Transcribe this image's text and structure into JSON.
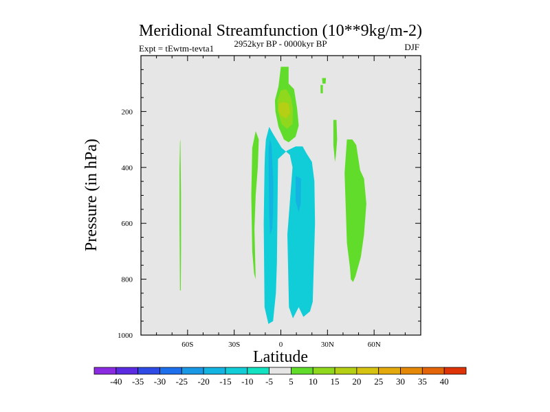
{
  "chart_data": {
    "type": "heatmap",
    "title": "Meridional Streamfunction (10**9kg/m-2)",
    "subtitle_left": "Expt = tEwtm-tevta1",
    "subtitle_center": "2952kyr BP - 0000kyr BP",
    "subtitle_right": "DJF",
    "xlabel": "Latitude",
    "ylabel": "Pressure (in hPa)",
    "xlim": [
      -90,
      90
    ],
    "ylim": [
      1000,
      0
    ],
    "x_ticks": [
      {
        "value": -60,
        "label": "60S"
      },
      {
        "value": -30,
        "label": "30S"
      },
      {
        "value": 0,
        "label": "0"
      },
      {
        "value": 30,
        "label": "30N"
      },
      {
        "value": 60,
        "label": "60N"
      }
    ],
    "y_ticks": [
      {
        "value": 200,
        "label": "200"
      },
      {
        "value": 400,
        "label": "400"
      },
      {
        "value": 600,
        "label": "600"
      },
      {
        "value": 800,
        "label": "800"
      },
      {
        "value": 1000,
        "label": "1000"
      }
    ],
    "background_level": "-5 to 5 (neutral)",
    "regions": [
      {
        "name": "lat-65-positive",
        "level": 5,
        "points": [
          [
            -64.6,
            300
          ],
          [
            -64.2,
            500
          ],
          [
            -64.2,
            700
          ],
          [
            -64.4,
            840
          ],
          [
            -64.9,
            840
          ],
          [
            -65.2,
            600
          ],
          [
            -65.2,
            400
          ],
          [
            -64.9,
            310
          ]
        ]
      },
      {
        "name": "lat-15S-positive",
        "level": 5,
        "points": [
          [
            -16.2,
            270
          ],
          [
            -14.2,
            300
          ],
          [
            -14.8,
            400
          ],
          [
            -16.2,
            500
          ],
          [
            -17.0,
            620
          ],
          [
            -16.2,
            800
          ],
          [
            -17.2,
            780
          ],
          [
            -18.4,
            700
          ],
          [
            -19.0,
            500
          ],
          [
            -18.4,
            330
          ]
        ]
      },
      {
        "name": "upper-equatorial-positive",
        "level": 5,
        "points": [
          [
            0,
            40
          ],
          [
            5,
            40
          ],
          [
            5,
            100
          ],
          [
            8.5,
            120
          ],
          [
            10.5,
            190
          ],
          [
            11.5,
            250
          ],
          [
            9.5,
            290
          ],
          [
            5,
            310
          ],
          [
            2,
            300
          ],
          [
            -1.5,
            255
          ],
          [
            -3.5,
            200
          ],
          [
            -3.8,
            160
          ],
          [
            -1.5,
            110
          ]
        ]
      },
      {
        "name": "upper-equatorial-max-outer",
        "level": 10,
        "points": [
          [
            0,
            125
          ],
          [
            3.5,
            120
          ],
          [
            6.5,
            150
          ],
          [
            7.8,
            190
          ],
          [
            7.5,
            245
          ],
          [
            4,
            262
          ],
          [
            0.5,
            245
          ],
          [
            -1.8,
            200
          ],
          [
            -2.2,
            160
          ]
        ]
      },
      {
        "name": "upper-equatorial-max-inner",
        "level": 15,
        "points": [
          [
            -1.2,
            172
          ],
          [
            2,
            165
          ],
          [
            5,
            172
          ],
          [
            6,
            205
          ],
          [
            3.5,
            225
          ],
          [
            0,
            215
          ],
          [
            -1.5,
            195
          ]
        ]
      },
      {
        "name": "upper-60N-tip",
        "level": 5,
        "points": [
          [
            26.5,
            80
          ],
          [
            29,
            80
          ],
          [
            28.8,
            100
          ],
          [
            26.8,
            100
          ]
        ]
      },
      {
        "name": "upper-20N-speck",
        "level": 5,
        "points": [
          [
            25.5,
            105
          ],
          [
            27,
            105
          ],
          [
            27,
            135
          ],
          [
            25.6,
            135
          ]
        ]
      },
      {
        "name": "lat-35N-positive",
        "level": 5,
        "points": [
          [
            33.8,
            230
          ],
          [
            35.8,
            230
          ],
          [
            36.2,
            300
          ],
          [
            35.4,
            360
          ],
          [
            34.8,
            380
          ],
          [
            33.8,
            320
          ]
        ]
      },
      {
        "name": "lat-50N-positive",
        "level": 5,
        "points": [
          [
            42.5,
            300
          ],
          [
            46,
            300
          ],
          [
            48.5,
            320
          ],
          [
            51,
            410
          ],
          [
            53.5,
            440
          ],
          [
            55,
            530
          ],
          [
            53.5,
            640
          ],
          [
            51.5,
            720
          ],
          [
            50.5,
            740
          ],
          [
            48,
            790
          ],
          [
            46.5,
            810
          ],
          [
            45,
            800
          ],
          [
            44.5,
            760
          ],
          [
            42.5,
            670
          ],
          [
            41.5,
            500
          ],
          [
            41,
            420
          ]
        ]
      },
      {
        "name": "equatorial-negative-column",
        "level": -10,
        "points": [
          [
            -7.5,
            255
          ],
          [
            -5,
            280
          ],
          [
            0.5,
            330
          ],
          [
            5.8,
            355
          ],
          [
            7.5,
            400
          ],
          [
            4.2,
            640
          ],
          [
            5.2,
            900
          ],
          [
            7.8,
            940
          ],
          [
            11.5,
            900
          ],
          [
            14.5,
            935
          ],
          [
            18.8,
            915
          ],
          [
            20.5,
            880
          ],
          [
            22,
            600
          ],
          [
            21.6,
            450
          ],
          [
            20,
            380
          ],
          [
            16.5,
            350
          ],
          [
            14,
            325
          ],
          [
            9.5,
            325
          ],
          [
            4,
            340
          ],
          [
            -1.8,
            370
          ],
          [
            -2.5,
            740
          ],
          [
            -3.2,
            850
          ],
          [
            -5,
            950
          ],
          [
            -8,
            960
          ],
          [
            -10.5,
            900
          ],
          [
            -11,
            600
          ],
          [
            -10.5,
            400
          ],
          [
            -10.2,
            350
          ],
          [
            -9.6,
            300
          ]
        ]
      },
      {
        "name": "equatorial-negative-core",
        "level": -15,
        "points": [
          [
            -7,
            300
          ],
          [
            -6,
            320
          ],
          [
            -4.8,
            450
          ],
          [
            -5,
            560
          ],
          [
            -5.5,
            620
          ],
          [
            -7,
            640
          ],
          [
            -7.5,
            560
          ],
          [
            -7.8,
            430
          ],
          [
            -7.8,
            330
          ]
        ]
      },
      {
        "name": "lat-10N-negative-core",
        "level": -15,
        "points": [
          [
            9.5,
            430
          ],
          [
            13,
            440
          ],
          [
            12.8,
            530
          ],
          [
            11.5,
            560
          ],
          [
            9.5,
            520
          ]
        ]
      }
    ],
    "colorbar": {
      "levels": [
        -40,
        -35,
        -30,
        -25,
        -20,
        -15,
        -10,
        -5,
        5,
        10,
        15,
        20,
        25,
        30,
        35,
        40
      ],
      "colors": [
        "#8A2BE2",
        "#5A2BE0",
        "#2F4BE6",
        "#1E6FEB",
        "#1998E6",
        "#14B4E2",
        "#10CDD8",
        "#12E2C1",
        "#E5E5E5",
        "#62DC2A",
        "#8FD81E",
        "#B5CF14",
        "#D5C211",
        "#E4A90C",
        "#E58808",
        "#E46408",
        "#DD3306"
      ],
      "background": "#E6E6E6"
    }
  }
}
